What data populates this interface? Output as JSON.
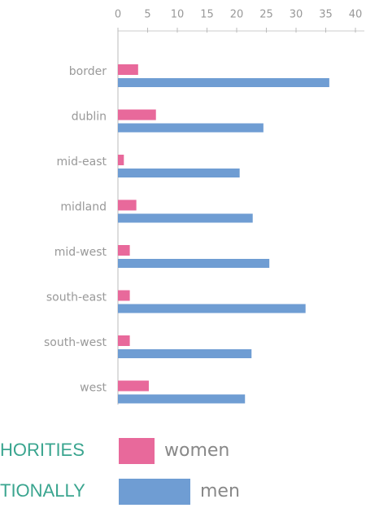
{
  "chart_data": {
    "type": "hbar",
    "categories": [
      "border",
      "dublin",
      "mid-east",
      "midland",
      "mid-west",
      "south-east",
      "south-west",
      "west"
    ],
    "series": [
      {
        "name": "women",
        "color": "#e8699b",
        "values": [
          3.4,
          6.4,
          1,
          3.1,
          2,
          2,
          2,
          5.2
        ]
      },
      {
        "name": "men",
        "color": "#6f9dd3",
        "values": [
          35.6,
          24.5,
          20.5,
          22.7,
          25.5,
          31.6,
          22.5,
          21.4
        ]
      }
    ],
    "xlim": [
      0,
      40
    ],
    "xticks": [
      0,
      5,
      10,
      15,
      20,
      25,
      30,
      35,
      40
    ],
    "grid": false,
    "annotations": [
      "HORITIES",
      "TIONALLY"
    ]
  }
}
